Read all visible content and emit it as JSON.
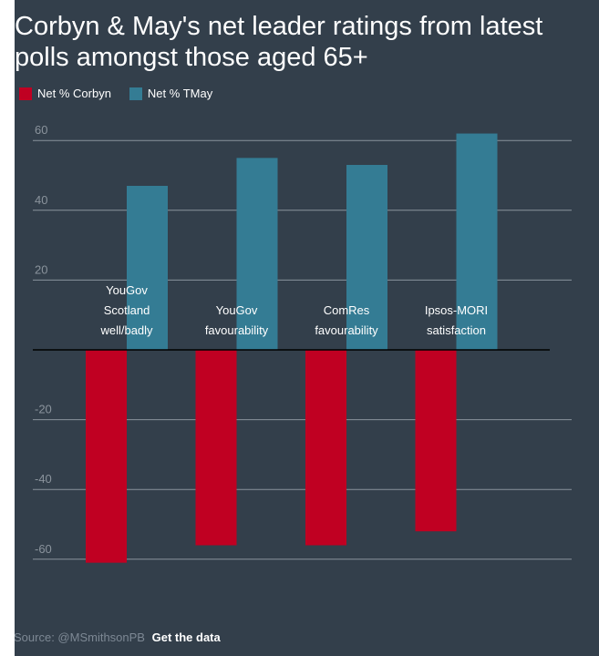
{
  "title": "Corbyn & May's net leader ratings from latest polls amongst those aged 65+",
  "footer": {
    "source": "Source: @MSmithsonPB",
    "link": "Get the data"
  },
  "colors": {
    "corbyn": "#c00022",
    "may": "#347c94",
    "background": "#333f4b",
    "grid": "#8a939c",
    "text": "#ffffff",
    "tick": "#8a939c"
  },
  "chart_data": {
    "type": "bar",
    "categories": [
      [
        "YouGov",
        "Scotland",
        "well/badly"
      ],
      [
        "YouGov",
        "favourability"
      ],
      [
        "ComRes",
        "favourability"
      ],
      [
        "Ipsos-MORI",
        "satisfaction"
      ]
    ],
    "series": [
      {
        "name": "Net % Corbyn",
        "values": [
          -61,
          -56,
          -56,
          -52
        ]
      },
      {
        "name": "Net % TMay",
        "values": [
          47,
          55,
          53,
          62
        ]
      }
    ],
    "yticks": [
      60,
      40,
      20,
      -20,
      -40,
      -60
    ],
    "ylim": [
      -60,
      60
    ],
    "grid": true,
    "legend": "top-left",
    "xlabel": "",
    "ylabel": ""
  }
}
